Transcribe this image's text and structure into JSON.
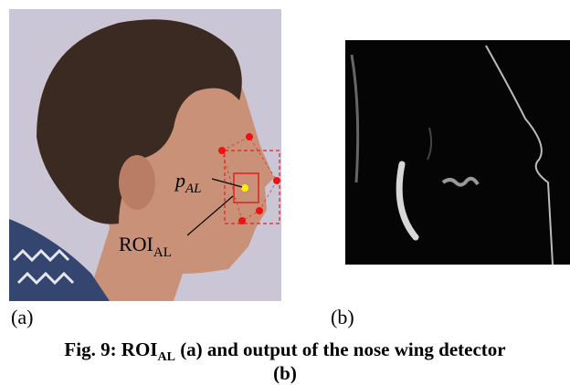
{
  "figure": {
    "panel_a": {
      "label": "(a)",
      "point_label": {
        "text": "p",
        "subscript": "AL"
      },
      "roi_label": {
        "text": "ROI",
        "subscript": "AL"
      }
    },
    "panel_b": {
      "label": "(b)"
    },
    "caption": {
      "prefix": "Fig. 9: ROI",
      "subscript": "AL",
      "line_1_rest": " (a) and output of the nose wing detector",
      "line_2": "(b)"
    }
  }
}
